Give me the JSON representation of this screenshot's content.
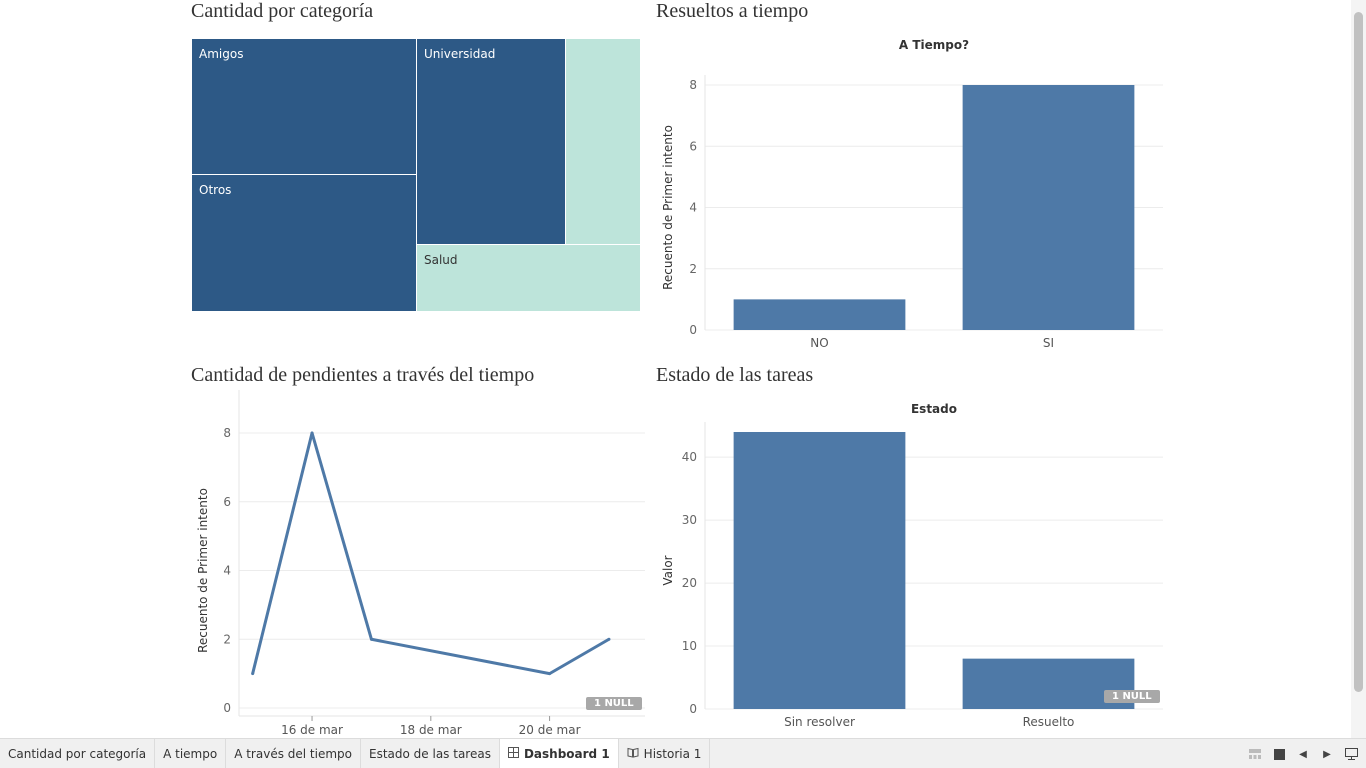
{
  "panels": {
    "treemap_title": "Cantidad por categoría",
    "ontime_title": "Resueltos a tiempo",
    "timeline_title": "Cantidad de pendientes a través del tiempo",
    "status_title": "Estado de las tareas"
  },
  "treemap": {
    "tiles": [
      {
        "label": "Amigos"
      },
      {
        "label": "Universidad"
      },
      {
        "label": ""
      },
      {
        "label": "Otros"
      },
      {
        "label": "Salud"
      }
    ],
    "colors": {
      "dark": "#2d5986",
      "light": "#bde4da"
    }
  },
  "null_badge": "1 NULL",
  "chart_data": [
    {
      "type": "bar",
      "title": "A Tiempo?",
      "ylabel": "Recuento de Primer intento",
      "xlabel": "",
      "categories": [
        "NO",
        "SI"
      ],
      "values": [
        1,
        8
      ],
      "ylim": [
        0,
        8
      ],
      "yticks": [
        0,
        2,
        4,
        6,
        8
      ],
      "ytick_labels": [
        "0",
        "2",
        "4",
        "6",
        "8"
      ],
      "grid": true,
      "color": "#4e79a7"
    },
    {
      "type": "line",
      "title": "",
      "ylabel": "Recuento de Primer intento",
      "xlabel": "",
      "x": [
        "2024-03-15",
        "2024-03-16",
        "2024-03-17",
        "2024-03-20",
        "2024-03-21"
      ],
      "values": [
        1,
        8,
        2,
        1,
        2
      ],
      "ylim": [
        0,
        8
      ],
      "yticks": [
        0,
        2,
        4,
        6,
        8
      ],
      "ytick_labels": [
        "0",
        "2",
        "4",
        "6",
        "8"
      ],
      "xticks": [
        "2024-03-16",
        "2024-03-18",
        "2024-03-20"
      ],
      "xtick_labels": [
        "16 de mar",
        "18 de mar",
        "20 de mar"
      ],
      "grid": true,
      "color": "#4e79a7"
    },
    {
      "type": "bar",
      "title": "Estado",
      "ylabel": "Valor",
      "xlabel": "",
      "categories": [
        "Sin resolver",
        "Resuelto"
      ],
      "values": [
        44,
        8
      ],
      "ylim": [
        0,
        44
      ],
      "yticks": [
        0,
        10,
        20,
        30,
        40
      ],
      "ytick_labels": [
        "0",
        "10",
        "20",
        "30",
        "40"
      ],
      "grid": true,
      "color": "#4e79a7"
    }
  ],
  "tabs": [
    {
      "label": "Cantidad por categoría",
      "icon": ""
    },
    {
      "label": "A tiempo",
      "icon": ""
    },
    {
      "label": "A través del tiempo",
      "icon": ""
    },
    {
      "label": "Estado de las tareas",
      "icon": ""
    },
    {
      "label": "Dashboard 1",
      "icon": "dashboard-icon"
    },
    {
      "label": "Historia 1",
      "icon": "story-icon"
    }
  ],
  "active_tab": "Dashboard 1"
}
